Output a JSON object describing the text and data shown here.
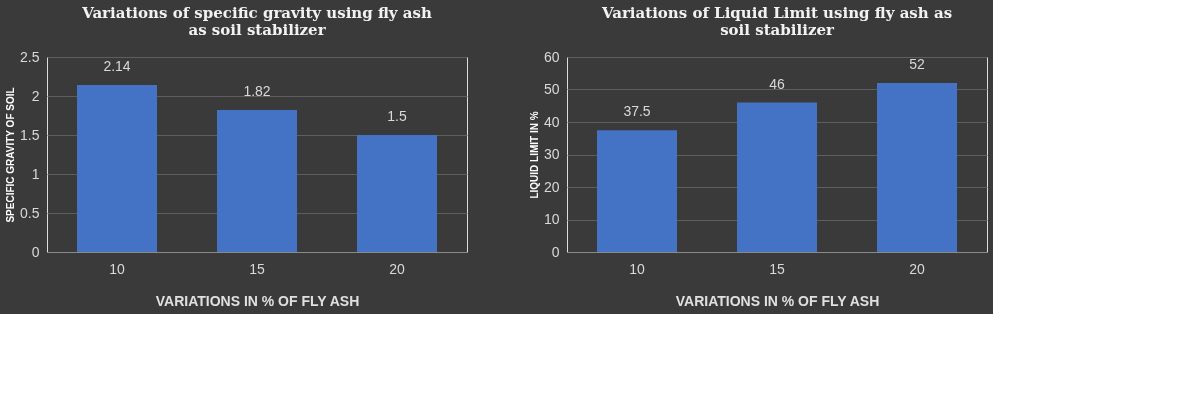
{
  "chart_data": [
    {
      "type": "bar",
      "title": "Variations of specific gravity using fly ash as soil stabilizer",
      "xlabel": "VARIATIONS IN % OF FLY ASH",
      "ylabel": "SPECIFIC GRAVITY OF SOIL",
      "categories": [
        "10",
        "15",
        "20"
      ],
      "values": [
        2.14,
        1.82,
        1.5
      ],
      "color": "#4472c4",
      "ylim": [
        0,
        2.5
      ],
      "yticks": [
        0,
        0.5,
        1,
        1.5,
        2,
        2.5
      ],
      "grid": "y",
      "data_labels": true
    },
    {
      "type": "bar",
      "title": "Variations of Liquid Limit using fly ash as soil stabilizer",
      "xlabel": "VARIATIONS IN % OF FLY ASH",
      "ylabel": "LIQUID LIMIT IN %",
      "categories": [
        "10",
        "15",
        "20"
      ],
      "values": [
        37.5,
        46,
        52
      ],
      "color": "#4472c4",
      "ylim": [
        0,
        60
      ],
      "yticks": [
        0,
        10,
        20,
        30,
        40,
        50,
        60
      ],
      "grid": "y",
      "data_labels": true
    }
  ]
}
